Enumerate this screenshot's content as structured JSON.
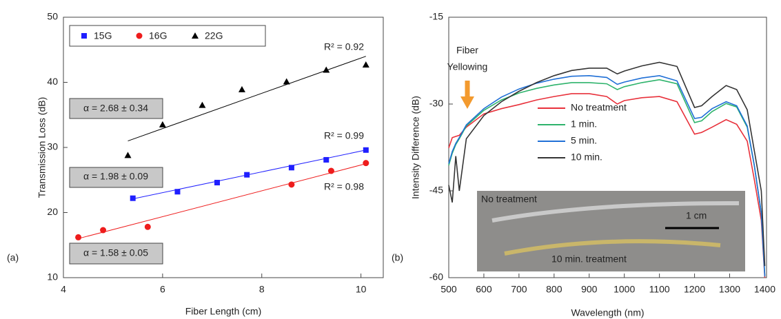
{
  "chart_data": [
    {
      "type": "scatter",
      "panel_label": "(a)",
      "x_label": "Fiber Length (cm)",
      "y_label": "Transmission Loss (dB)",
      "xlim": [
        4,
        10.45
      ],
      "xticks": [
        4,
        6,
        8,
        10
      ],
      "ylim": [
        10,
        50
      ],
      "yticks": [
        10,
        20,
        30,
        40,
        50
      ],
      "series": [
        {
          "name": "15G",
          "color": "#1f1fff",
          "marker": "square",
          "x": [
            5.4,
            6.3,
            7.1,
            7.7,
            8.6,
            9.3,
            10.1
          ],
          "values": [
            22.2,
            23.2,
            24.6,
            25.8,
            26.9,
            28.1,
            29.6
          ],
          "fit": {
            "x": [
              5.4,
              10.1
            ],
            "y": [
              22.1,
              29.6
            ]
          },
          "fit_label": "R² = 0.99",
          "alpha_label": "α = 1.98 ± 0.09"
        },
        {
          "name": "16G",
          "color": "#ee1c1c",
          "marker": "circle",
          "x": [
            4.3,
            4.8,
            5.7,
            8.6,
            9.4,
            10.1
          ],
          "values": [
            16.2,
            17.3,
            17.8,
            24.3,
            26.4,
            27.6
          ],
          "fit": {
            "x": [
              4.3,
              10.1
            ],
            "y": [
              16.0,
              27.5
            ]
          },
          "fit_label": "R² = 0.98",
          "alpha_label": "α = 1.58 ± 0.05"
        },
        {
          "name": "22G",
          "color": "#000000",
          "marker": "triangle",
          "x": [
            5.3,
            6.0,
            6.8,
            7.6,
            8.5,
            9.3,
            10.1
          ],
          "values": [
            28.8,
            33.5,
            36.5,
            38.9,
            40.1,
            41.9,
            42.7
          ],
          "fit": {
            "x": [
              5.3,
              10.1
            ],
            "y": [
              31.0,
              44.0
            ]
          },
          "fit_label": "R² = 0.92",
          "alpha_label": "α = 2.68 ± 0.34"
        }
      ]
    },
    {
      "type": "line",
      "panel_label": "(b)",
      "x_label": "Wavelength (nm)",
      "y_label": "Intensity Difference (dB)",
      "xlim": [
        500,
        1405
      ],
      "xticks": [
        500,
        600,
        700,
        800,
        900,
        1000,
        1100,
        1200,
        1300,
        1400
      ],
      "ylim": [
        -60,
        -15
      ],
      "yticks": [
        -60,
        -45,
        -30,
        -15
      ],
      "x": [
        500,
        510,
        520,
        530,
        550,
        600,
        650,
        700,
        750,
        800,
        850,
        900,
        950,
        980,
        1000,
        1050,
        1100,
        1150,
        1200,
        1220,
        1250,
        1290,
        1320,
        1350,
        1370,
        1390,
        1400
      ],
      "series": [
        {
          "name": "No treatment",
          "color": "#e8303a",
          "values": [
            -37.6,
            -35.8,
            -35.6,
            -35.4,
            -34,
            -31.7,
            -30.8,
            -30.1,
            -29.3,
            -28.7,
            -28.2,
            -28.2,
            -28.7,
            -30,
            -29.4,
            -28.9,
            -28.7,
            -29.6,
            -35.2,
            -34.9,
            -34,
            -32.7,
            -33.5,
            -36.4,
            -43,
            -50.1,
            -60
          ]
        },
        {
          "name": "1 min.",
          "color": "#2db36b",
          "values": [
            -40.6,
            -38.5,
            -37,
            -36,
            -33.8,
            -31.1,
            -29.3,
            -28.1,
            -27.3,
            -26.7,
            -26.3,
            -26.3,
            -26.5,
            -27.5,
            -27,
            -26.3,
            -25.8,
            -26.5,
            -33.2,
            -32.9,
            -31.3,
            -29.9,
            -30.5,
            -34,
            -40.6,
            -48.9,
            -59.6
          ]
        },
        {
          "name": "5 min.",
          "color": "#1f6fd6",
          "values": [
            -40.3,
            -38.2,
            -36.8,
            -35.8,
            -33.6,
            -30.8,
            -28.8,
            -27.4,
            -26.4,
            -25.7,
            -25.2,
            -25.1,
            -25.4,
            -26.6,
            -26.2,
            -25.5,
            -25.1,
            -26,
            -32.5,
            -32.3,
            -30.8,
            -29.6,
            -30.3,
            -33.8,
            -40.5,
            -48.8,
            -59.8
          ]
        },
        {
          "name": "10 min.",
          "color": "#333333",
          "values": [
            -44,
            -47,
            -39,
            -45,
            -36,
            -32,
            -29.6,
            -27.8,
            -26.3,
            -25.1,
            -24.2,
            -23.8,
            -23.8,
            -24.8,
            -24.3,
            -23.4,
            -22.8,
            -23.5,
            -30.6,
            -30.3,
            -28.7,
            -26.8,
            -27.5,
            -31,
            -38,
            -45,
            -58
          ]
        }
      ],
      "annotation": [
        "Fiber",
        "Yellowing"
      ],
      "inset": {
        "top_label": "No treatment",
        "scale_label": "1 cm",
        "bottom_label": "10 min. treatment"
      }
    }
  ]
}
